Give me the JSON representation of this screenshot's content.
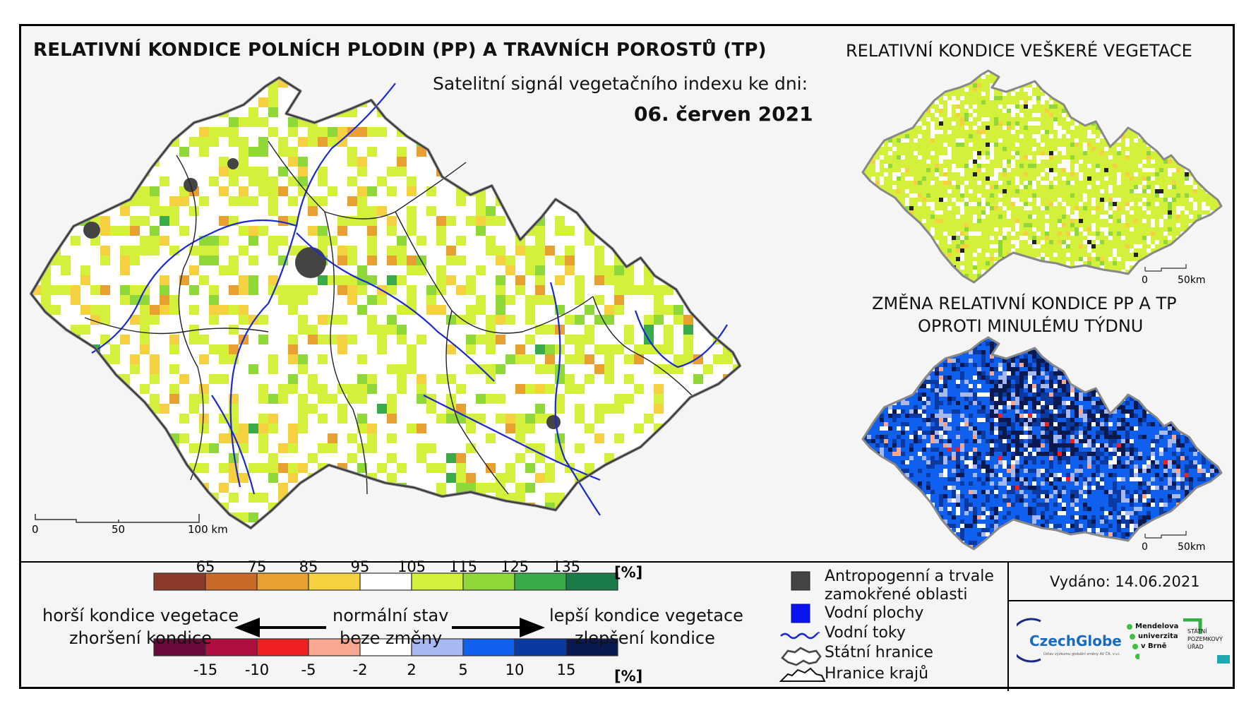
{
  "main_map": {
    "title": "RELATIVNÍ KONDICE POLNÍCH PLODIN (PP) A TRAVNÍCH POROSTŮ (TP)",
    "subtitle": "Satelitní signál vegetačního indexu ke dni:",
    "date": "06. červen 2021",
    "scale_labels": [
      "0",
      "50",
      "100 km"
    ]
  },
  "inset_top": {
    "title": "RELATIVNÍ KONDICE VEŠKERÉ VEGETACE",
    "scale_labels": [
      "0",
      "50km"
    ]
  },
  "inset_bottom": {
    "title_line1": "ZMĚNA RELATIVNÍ KONDICE PP A TP",
    "title_line2": "OPROTI MINULÉMU TÝDNU",
    "scale_labels": [
      "0",
      "50km"
    ]
  },
  "legend_condition": {
    "ticks": [
      "65",
      "75",
      "85",
      "95",
      "105",
      "115",
      "125",
      "135"
    ],
    "unit": "[%]",
    "colors": [
      "#8b3a2a",
      "#c96a2a",
      "#e8a030",
      "#f5d040",
      "#ffffff",
      "#d4f03a",
      "#8fd83a",
      "#3aaa4a",
      "#1a7a4a"
    ]
  },
  "legend_change": {
    "ticks": [
      "-15",
      "-10",
      "-5",
      "-2",
      "2",
      "5",
      "10",
      "15"
    ],
    "unit": "[%]",
    "colors": [
      "#6a0a3a",
      "#b01040",
      "#f02020",
      "#f8a890",
      "#ffffff",
      "#a8b8f0",
      "#1060f0",
      "#0a3aa0",
      "#0a1a50"
    ]
  },
  "legend_text": {
    "worse_1": "horší kondice vegetace",
    "worse_2": "zhoršení kondice",
    "normal_1": "normální stav",
    "normal_2": "beze změny",
    "better_1": "lepší kondice vegetace",
    "better_2": "zlepšení kondice"
  },
  "symbols": {
    "anthro_1": "Antropogenní a trvale",
    "anthro_2": "zamokřené oblasti",
    "water_bodies": "Vodní plochy",
    "rivers": "Vodní toky",
    "state_border": "Státní hranice",
    "region_border": "Hranice krajů",
    "anthro_color": "#444444",
    "water_color": "#0a14f0",
    "river_color": "#1a2ad0"
  },
  "issued": "Vydáno: 14.06.2021",
  "logos": {
    "czechglobe": "CzechGlobe",
    "czechglobe_sub": "Ústav výzkumu globální změny AV ČR, v.v.i.",
    "mendel_1": "Mendelova",
    "mendel_2": "univerzita",
    "mendel_3": "v Brně",
    "spu_1": "STÁTNÍ",
    "spu_2": "POZEMKOVÝ",
    "spu_3": "ÚŘAD"
  }
}
